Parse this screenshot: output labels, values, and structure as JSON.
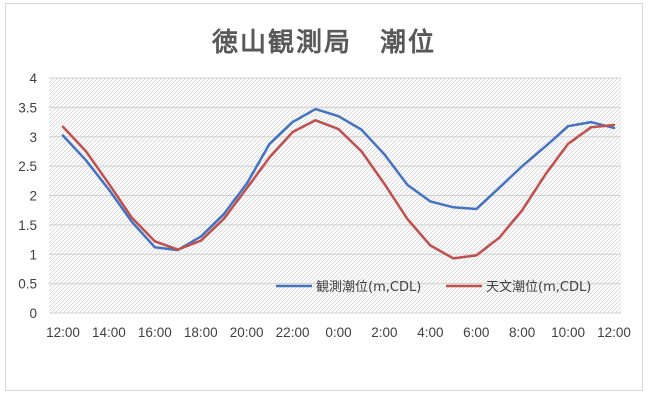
{
  "chart_data": {
    "type": "line",
    "title": "徳山観測局　潮位",
    "xlabel": "",
    "ylabel": "",
    "ylim": [
      0,
      4
    ],
    "ytick_labels": [
      "0",
      "0.5",
      "1",
      "1.5",
      "2",
      "2.5",
      "3",
      "3.5",
      "4"
    ],
    "xtick_labels": [
      "12:00",
      "14:00",
      "16:00",
      "18:00",
      "20:00",
      "22:00",
      "0:00",
      "2:00",
      "4:00",
      "6:00",
      "8:00",
      "10:00",
      "12:00"
    ],
    "x_hours": [
      "12:00",
      "13:00",
      "14:00",
      "15:00",
      "16:00",
      "17:00",
      "18:00",
      "19:00",
      "20:00",
      "21:00",
      "22:00",
      "23:00",
      "0:00",
      "1:00",
      "2:00",
      "3:00",
      "4:00",
      "5:00",
      "6:00",
      "7:00",
      "8:00",
      "9:00",
      "10:00",
      "11:00",
      "12:00"
    ],
    "series": [
      {
        "name": "観測潮位(m,CDL)",
        "color": "#4472c4",
        "values": [
          3.02,
          2.6,
          2.1,
          1.55,
          1.12,
          1.07,
          1.3,
          1.68,
          2.2,
          2.88,
          3.25,
          3.47,
          3.35,
          3.12,
          2.7,
          2.18,
          1.9,
          1.8,
          1.77,
          2.13,
          2.5,
          2.83,
          3.18,
          3.25,
          3.15
        ]
      },
      {
        "name": "天文潮位(m,CDL)",
        "color": "#c0504d",
        "values": [
          3.17,
          2.75,
          2.2,
          1.62,
          1.22,
          1.08,
          1.23,
          1.6,
          2.12,
          2.65,
          3.08,
          3.28,
          3.13,
          2.75,
          2.2,
          1.6,
          1.15,
          0.93,
          0.98,
          1.28,
          1.75,
          2.35,
          2.88,
          3.16,
          3.2
        ]
      }
    ],
    "grid": true,
    "legend_position": "lower-right inside plot"
  }
}
